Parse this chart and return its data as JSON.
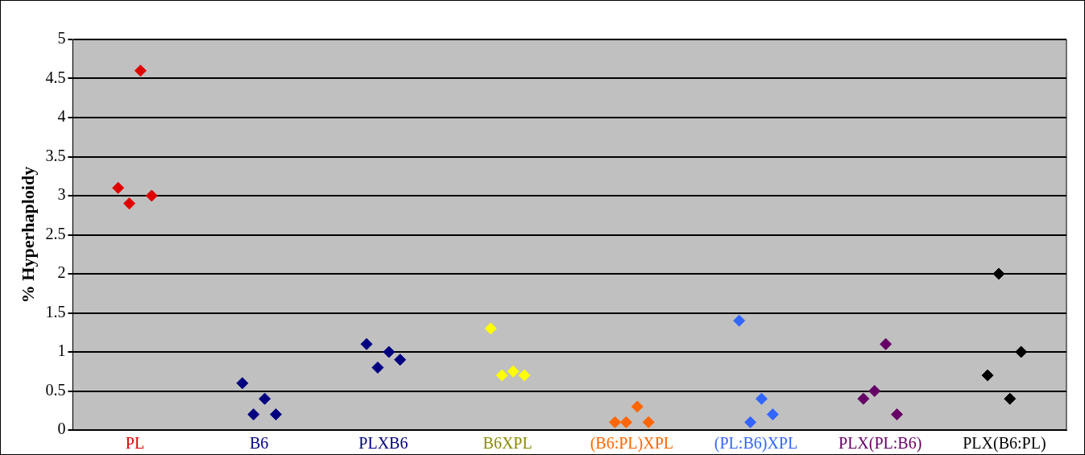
{
  "chart_data": {
    "type": "scatter",
    "ylabel": "% Hyperhaploidy",
    "categories": [
      "PL",
      "B6",
      "PLXB6",
      "B6XPL",
      "(B6:PL)XPL",
      "(PL:B6)XPL",
      "PLX(PL:B6)",
      "PLX(B6:PL)"
    ],
    "ylim": [
      0,
      5
    ],
    "yticks": [
      0,
      0.5,
      1,
      1.5,
      2,
      2.5,
      3,
      3.5,
      4,
      4.5,
      5
    ],
    "grid": "y",
    "legend": false,
    "marker": "diamond",
    "series": [
      {
        "colors": [
          "#e00000",
          "#000080",
          "#000080",
          "#ffff00",
          "#ff6600",
          "#3366ff",
          "#660066",
          "#000000"
        ],
        "values": [
          3.1,
          0.6,
          1.1,
          1.3,
          0.1,
          1.4,
          0.4,
          0.7
        ]
      },
      {
        "colors": [
          "#e00000",
          "#000080",
          "#000080",
          "#ffff00",
          "#ff6600",
          "#3366ff",
          "#660066",
          "#000000"
        ],
        "values": [
          2.9,
          0.2,
          0.8,
          0.7,
          0.1,
          0.1,
          0.5,
          2.0
        ]
      },
      {
        "colors": [
          "#e00000",
          "#000080",
          "#000080",
          "#ffff00",
          "#ff6600",
          "#3366ff",
          "#660066",
          "#000000"
        ],
        "values": [
          4.6,
          0.4,
          1.0,
          0.75,
          0.3,
          0.4,
          1.1,
          0.4
        ]
      },
      {
        "colors": [
          "#e00000",
          "#000080",
          "#000080",
          "#ffff00",
          "#ff6600",
          "#3366ff",
          "#660066",
          "#000000"
        ],
        "values": [
          3.0,
          0.2,
          0.9,
          0.7,
          0.1,
          0.2,
          0.2,
          1.0
        ]
      }
    ]
  }
}
